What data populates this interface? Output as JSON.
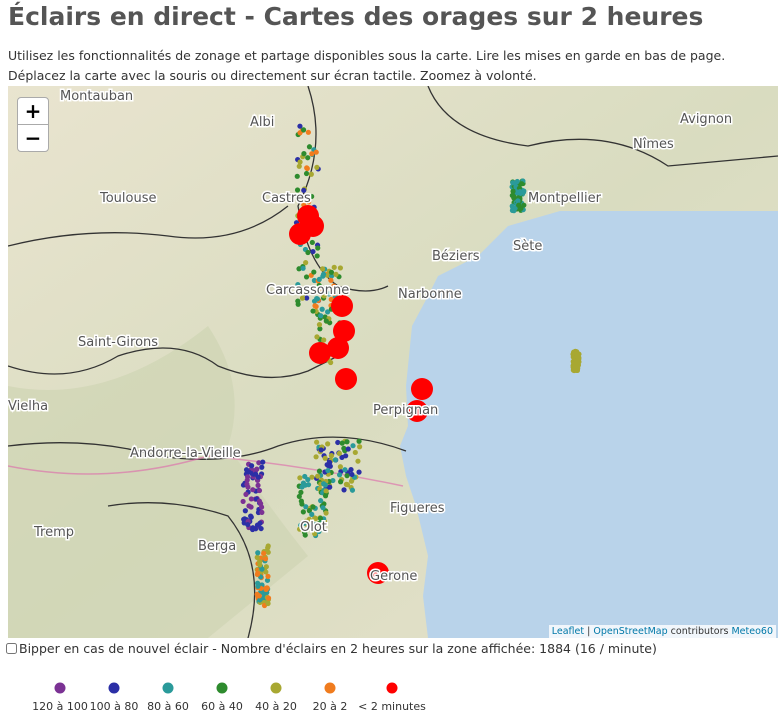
{
  "header": {
    "title": "Éclairs en direct - Cartes des orages sur 2 heures",
    "lines": [
      "Utilisez les fonctionnalités de zonage et partage disponibles sous la carte. Lire les mises en garde en bas de page.",
      "Déplacez la carte avec la souris ou directement sur écran tactile. Zoomez à volonté."
    ]
  },
  "map": {
    "zoom_in": "+",
    "zoom_out": "−",
    "places": [
      "Montauban",
      "Albi",
      "Toulouse",
      "Castres",
      "Carcassonne",
      "Narbonne",
      "Béziers",
      "Sète",
      "Montpellier",
      "Nîmes",
      "Avignon",
      "Saint-Girons",
      "Perpignan",
      "Andorre-la-Vieille",
      "Vielha",
      "Tremp",
      "Berga",
      "Olot",
      "Figueres",
      "Gerone"
    ],
    "attribution": {
      "leaflet": "Leaflet",
      "sep": "|",
      "osm": "OpenStreetMap",
      "contrib": "contributors",
      "meteo": "Meteo60"
    }
  },
  "footer": {
    "beeper": "Bipper en cas de nouvel éclair - Nombre d'éclairs en 2 heures sur la zone affichée: 1884 (16 / minute)"
  },
  "legend": [
    {
      "label": "120 à 100",
      "color": "#7b3294"
    },
    {
      "label": "100 à 80",
      "color": "#2b2fa6"
    },
    {
      "label": "80 à 60",
      "color": "#2a9a9a"
    },
    {
      "label": "60 à 40",
      "color": "#2e8b2e"
    },
    {
      "label": "40 à 20",
      "color": "#a8a832"
    },
    {
      "label": "20 à 2",
      "color": "#f07c1e"
    },
    {
      "label": "< 2 minutes",
      "color": "#ff0000"
    }
  ]
}
